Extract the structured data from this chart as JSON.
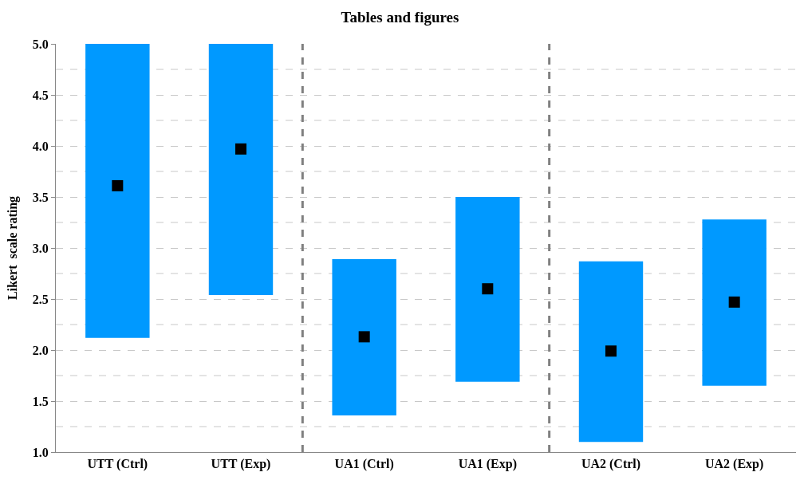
{
  "chart_data": {
    "type": "bar",
    "title": "Tables and figures",
    "ylabel": "Likert  scale rating",
    "categories": [
      "UTT (Ctrl)",
      "UTT (Exp)",
      "UA1 (Ctrl)",
      "UA1 (Exp)",
      "UA2 (Ctrl)",
      "UA2 (Exp)"
    ],
    "series": [
      {
        "color": "#0099ff",
        "base": [
          2.12,
          2.54,
          1.36,
          1.69,
          1.1,
          1.65
        ],
        "values": [
          2.88,
          2.46,
          1.53,
          1.81,
          1.77,
          1.63
        ]
      },
      {
        "type": "scatter",
        "marker": "square",
        "color": "#000000",
        "values": [
          3.61,
          3.97,
          2.13,
          2.6,
          1.99,
          2.47
        ]
      }
    ],
    "ylim": [
      1.0,
      5.0
    ],
    "yticks": [
      {
        "value": 1.0,
        "label": "1.0"
      },
      {
        "value": 1.5,
        "label": "1.5"
      },
      {
        "value": 2.0,
        "label": "2.0"
      },
      {
        "value": 2.5,
        "label": "2.5"
      },
      {
        "value": 3.0,
        "label": "3.0"
      },
      {
        "value": 3.5,
        "label": "3.5"
      },
      {
        "value": 4.0,
        "label": "4.0"
      },
      {
        "value": 4.5,
        "label": "4.5"
      },
      {
        "value": 5.0,
        "label": "5.0"
      }
    ],
    "grid": "y",
    "legend": false
  }
}
